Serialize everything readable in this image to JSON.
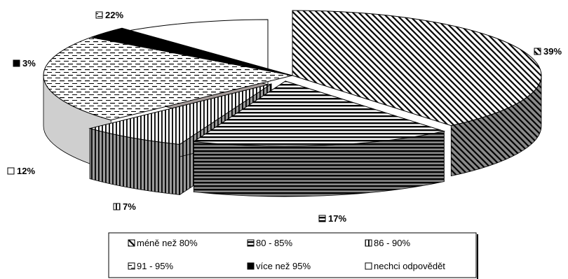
{
  "chart_data": {
    "type": "pie",
    "style": "3d-exploded",
    "legend_position": "bottom",
    "categories": [
      "méně než 80%",
      "80 - 85%",
      "86 - 90%",
      "91 - 95%",
      "více než 95%",
      "nechci odpovědět"
    ],
    "values": [
      39,
      17,
      7,
      22,
      3,
      12
    ],
    "labels": [
      "39%",
      "17%",
      "7%",
      "22%",
      "3%",
      "12%"
    ]
  }
}
